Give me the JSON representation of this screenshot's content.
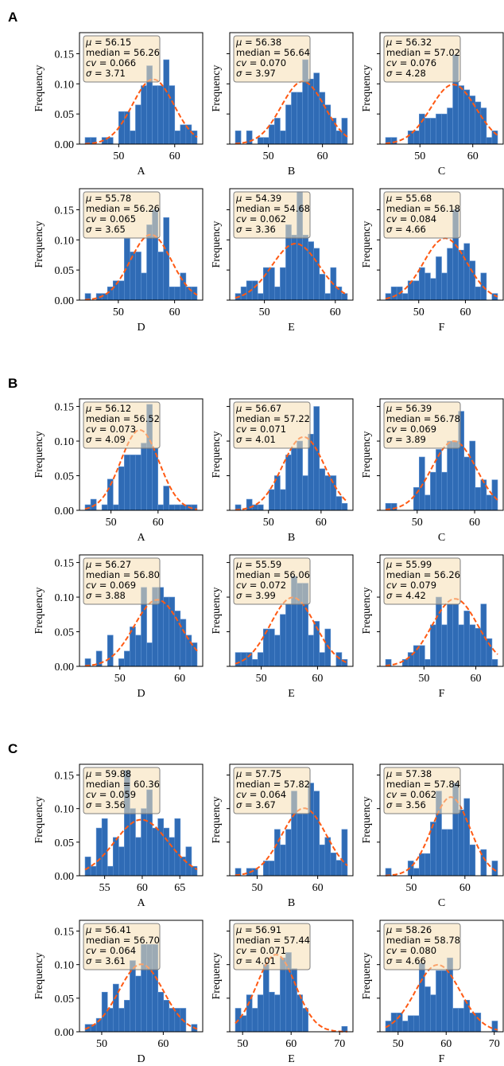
{
  "colors": {
    "bar": "#2f6bb5",
    "bar_edge": "#5b8fd0",
    "curve": "#ff5a14",
    "box_fill": "#f5deb3",
    "box_edge": "#7f7f7f"
  },
  "stat_labels": {
    "mu": "μ",
    "median": "median",
    "cv": "cv",
    "sigma": "σ",
    "eq": " = "
  },
  "ylabel": "Frequency",
  "chart_data": [
    {
      "type": "bar",
      "section": "A",
      "ylim": [
        0,
        0.185
      ],
      "yticks": [
        "0.00",
        "0.05",
        "0.10",
        "0.15"
      ],
      "panels": [
        {
          "xlabel": "A",
          "range": [
            44,
            64
          ],
          "xticks": [
            50,
            60
          ],
          "stats": {
            "mu": "56.15",
            "median": "56.26",
            "cv": "0.066",
            "sigma": "3.71"
          },
          "heights": [
            0.011,
            0.011,
            0,
            0.011,
            0.011,
            0,
            0.054,
            0.054,
            0.022,
            0.065,
            0.097,
            0.13,
            0.097,
            0.097,
            0.14,
            0.097,
            0.022,
            0.032,
            0.032,
            0.022
          ]
        },
        {
          "xlabel": "B",
          "range": [
            43.9,
            64.6
          ],
          "xticks": [
            50,
            60
          ],
          "stats": {
            "mu": "56.38",
            "median": "56.64",
            "cv": "0.070",
            "sigma": "3.97"
          },
          "heights": [
            0.022,
            0,
            0.022,
            0,
            0.011,
            0.011,
            0.032,
            0.043,
            0.022,
            0.065,
            0.086,
            0.086,
            0.14,
            0.108,
            0.118,
            0.086,
            0.065,
            0.043,
            0.022,
            0.043
          ]
        },
        {
          "xlabel": "C",
          "range": [
            43.5,
            64.7
          ],
          "xticks": [
            50,
            60
          ],
          "stats": {
            "mu": "56.32",
            "median": "57.02",
            "cv": "0.076",
            "sigma": "4.28"
          },
          "heights": [
            0.011,
            0.011,
            0,
            0,
            0.022,
            0.022,
            0.05,
            0.043,
            0.043,
            0.05,
            0.05,
            0.06,
            0.148,
            0.097,
            0.09,
            0.08,
            0.07,
            0.06,
            0.011,
            0.022
          ]
        },
        {
          "xlabel": "D",
          "range": [
            44.1,
            64
          ],
          "xticks": [
            50,
            60
          ],
          "stats": {
            "mu": "55.78",
            "median": "56.26",
            "cv": "0.065",
            "sigma": "3.65"
          },
          "heights": [
            0.011,
            0,
            0.011,
            0.011,
            0.022,
            0.032,
            0.032,
            0.102,
            0.08,
            0.08,
            0.045,
            0.125,
            0.15,
            0.08,
            0.137,
            0.022,
            0.022,
            0.045,
            0.022,
            0.022
          ]
        },
        {
          "xlabel": "E",
          "range": [
            45.9,
            61.7
          ],
          "xticks": [
            50,
            60
          ],
          "stats": {
            "mu": "54.39",
            "median": "54.68",
            "cv": "0.062",
            "sigma": "3.36"
          },
          "heights": [
            0.011,
            0.022,
            0.032,
            0.032,
            0.011,
            0.054,
            0.054,
            0.022,
            0.054,
            0.125,
            0.108,
            0.18,
            0.108,
            0.097,
            0.086,
            0.043,
            0.011,
            0.054,
            0.022,
            0.011
          ]
        },
        {
          "xlabel": "F",
          "range": [
            42.9,
            66.9
          ],
          "xticks": [
            50,
            60
          ],
          "stats": {
            "mu": "55.68",
            "median": "56.18",
            "cv": "0.084",
            "sigma": "4.66"
          },
          "heights": [
            0.011,
            0.022,
            0.022,
            0.011,
            0.032,
            0.032,
            0.054,
            0.045,
            0.036,
            0.072,
            0.045,
            0.086,
            0.15,
            0.083,
            0.094,
            0.065,
            0.022,
            0.045,
            0,
            0.011
          ]
        }
      ]
    },
    {
      "type": "bar",
      "section": "B",
      "ylim": [
        0,
        0.161
      ],
      "yticks": [
        "0.00",
        "0.05",
        "0.10",
        "0.15"
      ],
      "panels": [
        {
          "xlabel": "A",
          "range": [
            44.5,
            68.3
          ],
          "xticks": [
            50,
            60
          ],
          "stats": {
            "mu": "56.12",
            "median": "56.52",
            "cv": "0.073",
            "sigma": "4.09"
          },
          "heights": [
            0.008,
            0.016,
            0,
            0.008,
            0.045,
            0.008,
            0.063,
            0.08,
            0.08,
            0.08,
            0.097,
            0.153,
            0.09,
            0.008,
            0.035,
            0.008,
            0.008,
            0.008,
            0.008,
            0.008
          ]
        },
        {
          "xlabel": "B",
          "range": [
            43.7,
            65.0
          ],
          "xticks": [
            50,
            60
          ],
          "stats": {
            "mu": "56.67",
            "median": "57.22",
            "cv": "0.071",
            "sigma": "4.01"
          },
          "heights": [
            0.008,
            0,
            0.016,
            0.008,
            0.008,
            0,
            0.03,
            0.05,
            0.03,
            0.08,
            0.09,
            0.1,
            0.05,
            0.11,
            0.15,
            0.06,
            0.05,
            0.05,
            0.02,
            0.01
          ]
        },
        {
          "xlabel": "C",
          "range": [
            44.5,
            64.0
          ],
          "xticks": [
            50,
            60
          ],
          "stats": {
            "mu": "56.39",
            "median": "56.78",
            "cv": "0.069",
            "sigma": "3.89"
          },
          "heights": [
            0.01,
            0.01,
            0,
            0,
            0,
            0.033,
            0.077,
            0.022,
            0.055,
            0.088,
            0.055,
            0.1,
            0.1,
            0.143,
            0.077,
            0.1,
            0.033,
            0.044,
            0.022,
            0.044
          ]
        },
        {
          "xlabel": "D",
          "range": [
            44.2,
            62.9
          ],
          "xticks": [
            50,
            60
          ],
          "stats": {
            "mu": "56.27",
            "median": "56.80",
            "cv": "0.069",
            "sigma": "3.88"
          },
          "heights": [
            0.011,
            0,
            0.022,
            0,
            0.045,
            0,
            0.011,
            0.022,
            0.057,
            0.045,
            0.114,
            0.034,
            0.114,
            0.114,
            0.1,
            0.1,
            0.08,
            0.068,
            0.045,
            0.034
          ]
        },
        {
          "xlabel": "E",
          "range": [
            45.4,
            65.3
          ],
          "xticks": [
            50,
            60
          ],
          "stats": {
            "mu": "55.59",
            "median": "56.06",
            "cv": "0.072",
            "sigma": "3.99"
          },
          "heights": [
            0.02,
            0.02,
            0.02,
            0.01,
            0.02,
            0.054,
            0.054,
            0.045,
            0.075,
            0.09,
            0.13,
            0.12,
            0.12,
            0.045,
            0.065,
            0.02,
            0.054,
            0,
            0.02,
            0.01
          ]
        },
        {
          "xlabel": "F",
          "range": [
            42.6,
            64.2
          ],
          "xticks": [
            50,
            60
          ],
          "stats": {
            "mu": "55.99",
            "median": "56.26",
            "cv": "0.079",
            "sigma": "4.42"
          },
          "heights": [
            0.01,
            0,
            0,
            0.01,
            0.02,
            0.03,
            0.03,
            0.01,
            0.06,
            0.1,
            0.06,
            0.09,
            0.09,
            0.06,
            0.08,
            0.06,
            0.055,
            0.09,
            0.04,
            0.01
          ]
        }
      ]
    },
    {
      "type": "bar",
      "section": "C",
      "ylim": [
        0,
        0.166
      ],
      "yticks": [
        "0.00",
        "0.05",
        "0.10",
        "0.15"
      ],
      "panels": [
        {
          "xlabel": "A",
          "range": [
            52.4,
            67.3
          ],
          "xticks": [
            55,
            60,
            65
          ],
          "stats": {
            "mu": "59.88",
            "median": "60.36",
            "cv": "0.059",
            "sigma": "3.56"
          },
          "heights": [
            0.028,
            0.014,
            0.071,
            0.085,
            0.014,
            0.057,
            0.043,
            0.157,
            0.1,
            0.057,
            0.1,
            0.128,
            0.071,
            0.085,
            0.071,
            0.057,
            0.085,
            0.028,
            0.043,
            0.014
          ]
        },
        {
          "xlabel": "B",
          "range": [
            46.4,
            64.9
          ],
          "xticks": [
            50,
            60
          ],
          "stats": {
            "mu": "57.75",
            "median": "57.82",
            "cv": "0.064",
            "sigma": "3.67"
          },
          "heights": [
            0.011,
            0,
            0.011,
            0.011,
            0,
            0.022,
            0.022,
            0.069,
            0.046,
            0.069,
            0.126,
            0.092,
            0.092,
            0.138,
            0.126,
            0.046,
            0.057,
            0.034,
            0.023,
            0.069
          ]
        },
        {
          "xlabel": "C",
          "range": [
            45.2,
            66.1
          ],
          "xticks": [
            50,
            60
          ],
          "stats": {
            "mu": "57.38",
            "median": "57.84",
            "cv": "0.062",
            "sigma": "3.56"
          },
          "heights": [
            0.011,
            0,
            0,
            0,
            0.022,
            0.011,
            0.033,
            0.033,
            0.08,
            0.126,
            0.069,
            0.069,
            0.138,
            0.098,
            0.115,
            0.046,
            0,
            0.039,
            0,
            0.022
          ]
        },
        {
          "xlabel": "D",
          "range": [
            47.3,
            65.5
          ],
          "xticks": [
            50,
            60
          ],
          "stats": {
            "mu": "56.41",
            "median": "56.70",
            "cv": "0.064",
            "sigma": "3.61"
          },
          "heights": [
            0.011,
            0.011,
            0.02,
            0.059,
            0.035,
            0.071,
            0.035,
            0.047,
            0.106,
            0.083,
            0.13,
            0.13,
            0.13,
            0.059,
            0.047,
            0.035,
            0.035,
            0.035,
            0,
            0.011
          ]
        },
        {
          "xlabel": "E",
          "range": [
            48.5,
            71.6
          ],
          "xticks": [
            50,
            60,
            70
          ],
          "stats": {
            "mu": "56.91",
            "median": "57.44",
            "cv": "0.071",
            "sigma": "4.01"
          },
          "heights": [
            0.035,
            0.024,
            0.055,
            0.035,
            0.055,
            0.1,
            0.059,
            0.055,
            0.11,
            0.118,
            0.094,
            0.055,
            0.035,
            0,
            0,
            0,
            0,
            0,
            0,
            0.008
          ]
        },
        {
          "xlabel": "F",
          "range": [
            47.4,
            70.7
          ],
          "xticks": [
            50,
            60,
            70
          ],
          "stats": {
            "mu": "58.26",
            "median": "58.78",
            "cv": "0.080",
            "sigma": "4.66"
          },
          "heights": [
            0.016,
            0.028,
            0.028,
            0.016,
            0.024,
            0.024,
            0.102,
            0.067,
            0.055,
            0.091,
            0.091,
            0.11,
            0.035,
            0.035,
            0.047,
            0.028,
            0.028,
            0,
            0,
            0.016
          ]
        }
      ]
    }
  ]
}
